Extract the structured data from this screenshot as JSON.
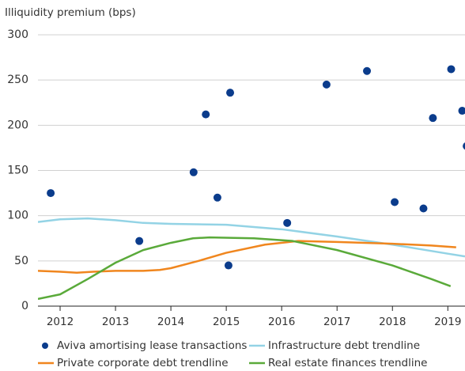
{
  "chart_data": {
    "type": "scatter",
    "y_label": "Illiquidity premium (bps)",
    "xlim": [
      2011.6,
      2019.31
    ],
    "xticks": [
      2012,
      2013,
      2014,
      2015,
      2016,
      2017,
      2018,
      2019
    ],
    "ylim": [
      0,
      300
    ],
    "yticks": [
      0,
      50,
      100,
      150,
      200,
      250,
      300
    ],
    "grid": true,
    "legend": "bottom",
    "series": [
      {
        "name": "Aviva amortising lease transactions",
        "type": "scatter",
        "color": "#0b3c8c",
        "x": [
          2011.83,
          2013.43,
          2014.41,
          2014.63,
          2014.84,
          2015.07,
          2015.04,
          2016.1,
          2016.81,
          2017.54,
          2018.04,
          2018.56,
          2018.73,
          2019.06,
          2019.26,
          2019.34
        ],
        "values": [
          125,
          72,
          148,
          212,
          120,
          236,
          45,
          92,
          245,
          260,
          115,
          108,
          208,
          262,
          216,
          177
        ]
      },
      {
        "name": "Infrastructure debt trendline",
        "type": "line",
        "color": "#93d3e5",
        "x": [
          2011.6,
          2012.0,
          2012.5,
          2013.0,
          2013.5,
          2014.0,
          2015.0,
          2016.0,
          2017.0,
          2018.0,
          2019.0,
          2019.31
        ],
        "values": [
          93,
          96,
          97,
          95,
          92,
          91,
          90,
          85,
          77,
          68,
          58,
          55
        ]
      },
      {
        "name": "Private corporate debt trendline",
        "type": "line",
        "color": "#f0861e",
        "x": [
          2011.6,
          2012.0,
          2012.3,
          2012.6,
          2013.0,
          2013.5,
          2013.8,
          2014.0,
          2014.5,
          2015.0,
          2015.7,
          2016.3,
          2017.0,
          2018.0,
          2018.7,
          2019.15
        ],
        "values": [
          39,
          38,
          37,
          38,
          39,
          39,
          40,
          42,
          50,
          59,
          68,
          72,
          71,
          69,
          67,
          65
        ]
      },
      {
        "name": "Real estate finances trendline",
        "type": "line",
        "color": "#5aaa3a",
        "x": [
          2011.6,
          2012.0,
          2012.5,
          2013.0,
          2013.5,
          2014.0,
          2014.4,
          2014.7,
          2015.5,
          2016.2,
          2017.0,
          2018.0,
          2018.7,
          2019.05
        ],
        "values": [
          8,
          13,
          30,
          48,
          62,
          70,
          75,
          76,
          75,
          72,
          62,
          45,
          30,
          22
        ]
      }
    ]
  }
}
